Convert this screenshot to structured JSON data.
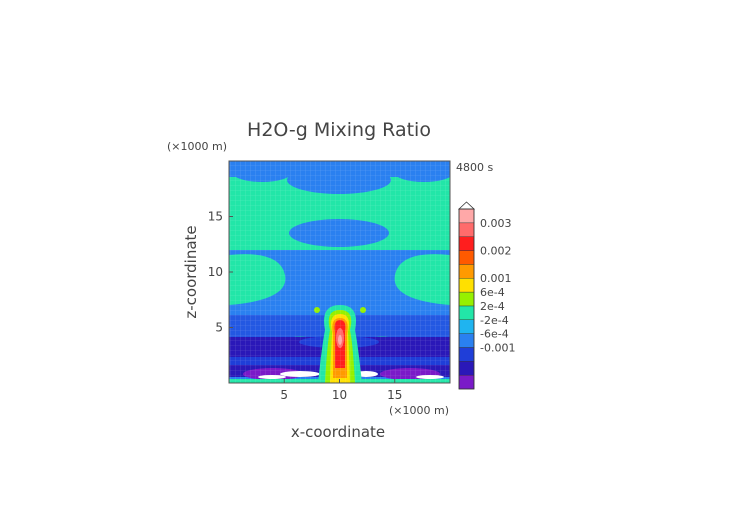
{
  "chart_data": {
    "type": "heatmap",
    "title": "H2O-g Mixing Ratio",
    "time_label": "4800 s",
    "xlabel": "x-coordinate",
    "ylabel": "z-coordinate",
    "x_unit": "(×1000 m)",
    "y_unit": "(×1000 m)",
    "xlim": [
      0,
      20
    ],
    "ylim": [
      0,
      20
    ],
    "x_ticks": [
      5,
      10,
      15
    ],
    "y_ticks": [
      5,
      10,
      15
    ],
    "grid": true,
    "colorbar": {
      "position": "right",
      "labels": [
        {
          "text": "0.003",
          "level": 12
        },
        {
          "text": "0.002",
          "level": 10
        },
        {
          "text": "0.001",
          "level": 8
        },
        {
          "text": "6e-4",
          "level": 7
        },
        {
          "text": "2e-4",
          "level": 6
        },
        {
          "text": "-2e-4",
          "level": 5
        },
        {
          "text": "-6e-4",
          "level": 4
        },
        {
          "text": "-0.001",
          "level": 3
        }
      ],
      "colors": [
        "#7a1ac8",
        "#2a18b8",
        "#1f3ed8",
        "#2a80f0",
        "#1fb4f0",
        "#22e6a8",
        "#96f000",
        "#ffe000",
        "#ff9a00",
        "#ff5a00",
        "#ff1e1e",
        "#ff6b6b",
        "#ffa8a8"
      ]
    }
  }
}
